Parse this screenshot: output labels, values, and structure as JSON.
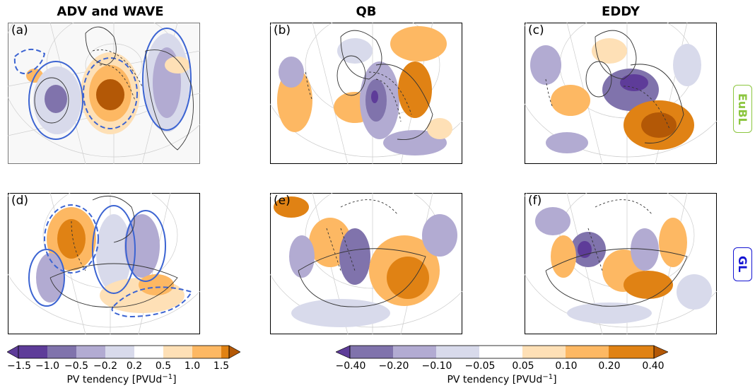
{
  "columns": [
    "ADV and WAVE",
    "QB",
    "EDDY"
  ],
  "panels": [
    "(a)",
    "(b)",
    "(c)",
    "(d)",
    "(e)",
    "(f)"
  ],
  "rows": [
    {
      "label": "EuBL",
      "color": "#8cc63f"
    },
    {
      "label": "GL",
      "color": "#1414d2"
    }
  ],
  "colorbar_left": {
    "ticks": [
      "−1.5",
      "−1.0",
      "−0.5",
      "−0.2",
      "0.2",
      "0.5",
      "1.0",
      "1.5"
    ],
    "label_main": "PV tendency [PVUd",
    "label_sup": "−1",
    "label_end": "]"
  },
  "colorbar_right": {
    "ticks": [
      "−0.40",
      "−0.20",
      "−0.10",
      "−0.05",
      "0.05",
      "0.10",
      "0.20",
      "0.40"
    ],
    "label_main": "PV tendency [PVUd",
    "label_sup": "−1",
    "label_end": "]"
  },
  "colors": {
    "purple": [
      "#5e3c99",
      "#8073ac",
      "#b2abd2",
      "#d8daeb"
    ],
    "orange": [
      "#fee0b6",
      "#fdb863",
      "#e08214",
      "#b35806"
    ],
    "contour_blue": "#3c64d2",
    "contour_black": "#333333"
  }
}
